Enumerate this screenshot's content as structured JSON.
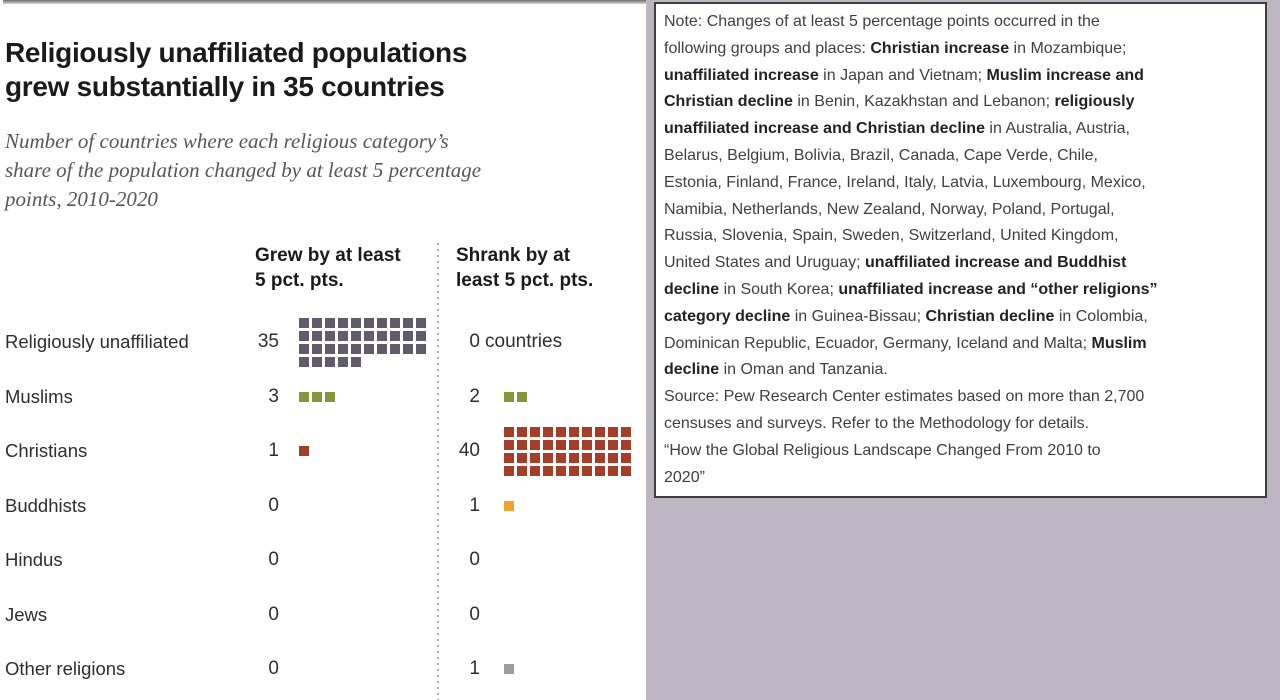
{
  "meta": {
    "title": "Religiously unaffiliated populations grew substantially in 35 countries",
    "title_lines": [
      "Religiously unaffiliated populations",
      "grew substantially in 35 countries"
    ],
    "subtitle": "Number of countries where each religious category’s share of the population changed by at least 5 percentage points, 2010-2020",
    "subtitle_lines": [
      "Number of countries where each religious category’s",
      "share of the population changed by at least 5 percentage",
      "points, 2010-2020"
    ]
  },
  "chart_data": {
    "type": "table",
    "subtype": "waffle-pictogram",
    "unit": "countries",
    "period": "2010-2020",
    "squares_per_grid_row": 10,
    "columns": [
      {
        "label": "Grew by at least 5 pct. pts.",
        "lines": [
          "Grew by at least",
          "5 pct. pts."
        ]
      },
      {
        "label": "Shrank by at least 5 pct. pts.",
        "lines": [
          "Shrank by at",
          "least 5 pct. pts."
        ]
      }
    ],
    "rows": [
      {
        "category": "Religiously unaffiliated",
        "grew": 35,
        "shrank": 0,
        "shrank_suffix": "countries",
        "color": "#615c6c"
      },
      {
        "category": "Muslims",
        "grew": 3,
        "shrank": 2,
        "color": "#8a943f"
      },
      {
        "category": "Christians",
        "grew": 1,
        "shrank": 40,
        "color": "#a43e29"
      },
      {
        "category": "Buddhists",
        "grew": 0,
        "shrank": 1,
        "color": "#f0a32e"
      },
      {
        "category": "Hindus",
        "grew": 0,
        "shrank": 0
      },
      {
        "category": "Jews",
        "grew": 0,
        "shrank": 0
      },
      {
        "category": "Other religions",
        "grew": 0,
        "shrank": 1,
        "color": "#9c9c9c"
      }
    ]
  },
  "note": {
    "lines": [
      [
        {
          "t": "Note: Changes of at least 5 percentage points occurred in the"
        }
      ],
      [
        {
          "t": "following groups and places: "
        },
        {
          "t": "Christian increase",
          "b": true
        },
        {
          "t": " in Mozambique;"
        }
      ],
      [
        {
          "t": "unaffiliated increase",
          "b": true
        },
        {
          "t": " in Japan and Vietnam; "
        },
        {
          "t": "Muslim increase and",
          "b": true
        }
      ],
      [
        {
          "t": "Christian decline",
          "b": true
        },
        {
          "t": " in Benin, Kazakhstan and Lebanon; "
        },
        {
          "t": "religiously",
          "b": true
        }
      ],
      [
        {
          "t": "unaffiliated increase and Christian decline",
          "b": true
        },
        {
          "t": " in Australia, Austria,"
        }
      ],
      [
        {
          "t": "Belarus, Belgium, Bolivia, Brazil, Canada, Cape Verde, Chile,"
        }
      ],
      [
        {
          "t": "Estonia, Finland, France, Ireland, Italy, Latvia, Luxembourg, Mexico,"
        }
      ],
      [
        {
          "t": "Namibia, Netherlands, New Zealand, Norway, Poland, Portugal,"
        }
      ],
      [
        {
          "t": "Russia, Slovenia, Spain, Sweden, Switzerland, United Kingdom,"
        }
      ],
      [
        {
          "t": "United States and Uruguay; "
        },
        {
          "t": "unaffiliated increase and Buddhist",
          "b": true
        }
      ],
      [
        {
          "t": "decline",
          "b": true
        },
        {
          "t": " in South Korea; "
        },
        {
          "t": "unaffiliated increase and “other religions”",
          "b": true
        }
      ],
      [
        {
          "t": "category decline",
          "b": true
        },
        {
          "t": " in Guinea-Bissau; "
        },
        {
          "t": "Christian decline",
          "b": true
        },
        {
          "t": " in Colombia,"
        }
      ],
      [
        {
          "t": "Dominican Republic, Ecuador, Germany, Iceland and Malta; "
        },
        {
          "t": "Muslim",
          "b": true
        }
      ],
      [
        {
          "t": "decline",
          "b": true
        },
        {
          "t": " in Oman and Tanzania."
        }
      ],
      [
        {
          "t": "Source: Pew Research Center estimates based on more than 2,700"
        }
      ],
      [
        {
          "t": "censuses and surveys. Refer to the Methodology for details."
        }
      ],
      [
        {
          "t": "“How the Global Religious Landscape Changed From 2010 to"
        }
      ],
      [
        {
          "t": "2020”"
        }
      ]
    ]
  },
  "colors": {
    "background": "#bdb5c1",
    "panel": "#ffffff",
    "unaffiliated": "#615c6c",
    "muslims": "#8a943f",
    "christians": "#a43e29",
    "buddhists": "#f0a32e",
    "other_religions": "#9c9c9c",
    "note_border": "#3d3d3d",
    "divider": "#a8a8a8"
  }
}
